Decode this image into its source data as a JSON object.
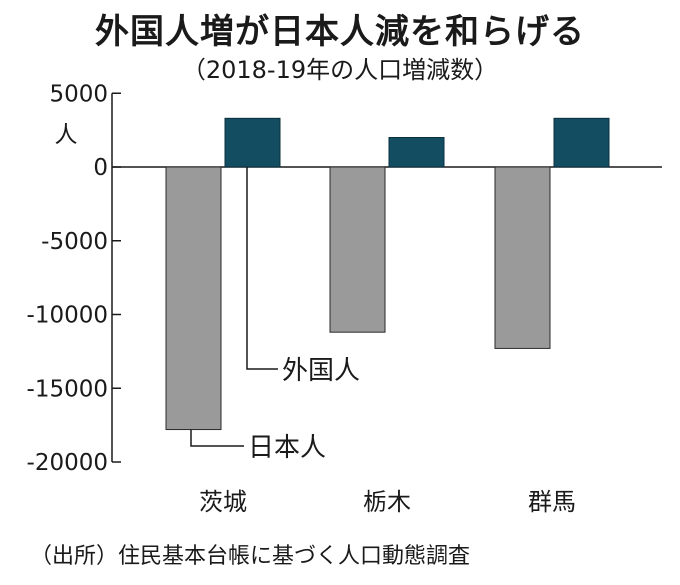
{
  "title": "外国人増が日本人減を和らげる",
  "subtitle": "（2018-19年の人口増減数）",
  "source": "（出所）住民基本台帳に基づく人口動態調査",
  "colors": {
    "japanese": "#9a9a9a",
    "foreign": "#134d62",
    "axis": "#1a1a1a"
  },
  "chart_data": {
    "type": "bar",
    "title": "外国人増が日本人減を和らげる",
    "subtitle": "（2018-19年の人口増減数）",
    "categories": [
      "茨城",
      "栃木",
      "群馬"
    ],
    "series": [
      {
        "name": "日本人",
        "values": [
          -17800,
          -11200,
          -12300
        ]
      },
      {
        "name": "外国人",
        "values": [
          3300,
          2000,
          3300
        ]
      }
    ],
    "yunit": "人",
    "yticks": [
      5000,
      0,
      -5000,
      -10000,
      -15000,
      -20000
    ],
    "ylim": [
      -20000,
      5000
    ],
    "grid": false,
    "legend": "callout labels inside plot"
  }
}
